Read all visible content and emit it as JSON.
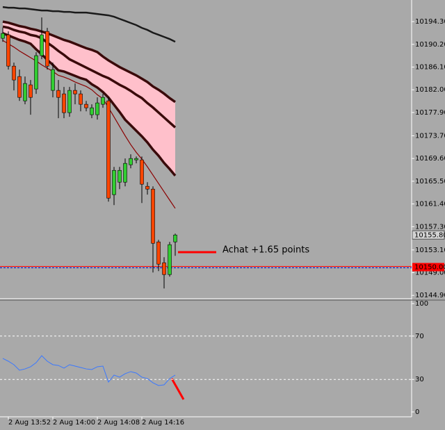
{
  "chart_data": [
    {
      "type": "candlestick",
      "categories": [
        null,
        "2 Aug 13:52",
        null,
        null,
        null,
        null,
        null,
        null,
        null,
        "2 Aug 14:00",
        null,
        null,
        null,
        null,
        null,
        null,
        null,
        "2 Aug 14:08",
        null,
        null,
        null,
        null,
        null,
        null,
        null,
        "2 Aug 14:16",
        null,
        null,
        null,
        null,
        null,
        null
      ],
      "open": [
        10191.29,
        10191.92,
        10186.27,
        10184.39,
        10180.0,
        10182.89,
        10182.14,
        10188.16,
        10192.54,
        10181.89,
        10181.89,
        10181.26,
        10177.87,
        10181.89,
        10181.26,
        10179.38,
        10177.5,
        10177.5,
        10179.38,
        10180.0,
        10163.08,
        10165.33,
        10165.33,
        10168.47,
        10169.35,
        10169.35,
        10164.58,
        10164.08,
        10154.55,
        10150.79,
        10148.66,
        10154.55
      ],
      "high": [
        10193.17,
        10192.54,
        10186.9,
        10185.65,
        10184.39,
        10183.77,
        10188.78,
        10195.05,
        10193.17,
        10186.9,
        10183.77,
        10182.51,
        10182.51,
        10183.14,
        10181.89,
        10180.0,
        10179.38,
        10180.63,
        10181.26,
        10180.63,
        10168.09,
        10168.09,
        10169.6,
        10170.35,
        10169.97,
        10169.97,
        10165.33,
        10164.58,
        10154.92,
        10151.79,
        10154.55,
        10156.05
      ],
      "low": [
        10190.66,
        10185.65,
        10181.89,
        10180.0,
        10179.38,
        10177.5,
        10181.26,
        10187.53,
        10185.65,
        10180.63,
        10176.87,
        10176.87,
        10177.12,
        10179.38,
        10178.12,
        10178.12,
        10176.87,
        10176.62,
        10178.75,
        10161.82,
        10161.19,
        10164.08,
        10164.58,
        10167.84,
        10168.72,
        10161.57,
        10163.08,
        10149.03,
        10149.28,
        10146.15,
        10148.28,
        10152.04
      ],
      "close": [
        10192.17,
        10186.27,
        10183.77,
        10180.63,
        10183.14,
        10180.63,
        10188.16,
        10191.92,
        10186.27,
        10185.65,
        10180.63,
        10177.87,
        10181.89,
        10181.26,
        10179.38,
        10178.75,
        10178.75,
        10179.63,
        10180.63,
        10162.45,
        10167.46,
        10167.46,
        10168.72,
        10169.6,
        10169.6,
        10164.96,
        10164.08,
        10154.3,
        10150.54,
        10148.66,
        10154.05,
        10155.8
      ],
      "up_color": "#32cd32",
      "down_color": "#ff4500",
      "series": [
        {
          "color": "#1a1a1a",
          "width": 2.5,
          "values": [
            10196.93,
            10196.81,
            10196.81,
            10196.68,
            10196.68,
            10196.56,
            10196.43,
            10196.31,
            10196.31,
            10196.18,
            10196.18,
            10196.06,
            10196.06,
            10195.93,
            10195.93,
            10195.93,
            10195.8,
            10195.68,
            10195.55,
            10195.43,
            10195.18,
            10194.8,
            10194.43,
            10194.05,
            10193.67,
            10193.17,
            10192.8,
            10192.29,
            10191.92,
            10191.54,
            10191.16,
            10190.66
          ]
        },
        {
          "color": "#3a0a0a",
          "width": 3.5,
          "values": [
            10194.3,
            10194.1,
            10193.8,
            10193.5,
            10193.3,
            10193.0,
            10192.8,
            10192.5,
            10192.2,
            10191.8,
            10191.4,
            10191.0,
            10190.7,
            10190.3,
            10189.9,
            10189.5,
            10189.2,
            10188.8,
            10188.0,
            10187.3,
            10186.7,
            10186.1,
            10185.6,
            10185.1,
            10184.6,
            10184.0,
            10183.4,
            10182.6,
            10182.0,
            10181.3,
            10180.5,
            10179.8
          ]
        },
        {
          "color": "#3a0a0a",
          "width": 3.5,
          "values": [
            10193.4,
            10193.2,
            10192.8,
            10192.5,
            10192.3,
            10191.9,
            10191.7,
            10191.3,
            10190.5,
            10189.8,
            10189.0,
            10188.3,
            10187.5,
            10187.0,
            10186.5,
            10186.0,
            10185.5,
            10185.0,
            10184.5,
            10184.1,
            10183.5,
            10182.9,
            10182.4,
            10181.8,
            10181.1,
            10180.5,
            10179.6,
            10178.8,
            10177.9,
            10177.0,
            10176.1,
            10175.2
          ]
        },
        {
          "color": "#3a0a0a",
          "width": 3.5,
          "values": [
            10192.2,
            10191.8,
            10191.4,
            10191.0,
            10190.7,
            10190.3,
            10189.3,
            10188.4,
            10187.4,
            10186.5,
            10185.5,
            10185.3,
            10184.9,
            10184.5,
            10184.1,
            10183.8,
            10183.0,
            10182.4,
            10181.6,
            10180.6,
            10179.3,
            10178.0,
            10176.6,
            10175.6,
            10174.6,
            10173.6,
            10172.5,
            10171.2,
            10170.1,
            10168.8,
            10167.7,
            10166.5
          ]
        },
        {
          "color": "#8b0000",
          "width": 1.2,
          "values": [
            10190.9,
            10190.3,
            10189.7,
            10189.0,
            10188.4,
            10187.8,
            10187.2,
            10186.5,
            10185.9,
            10185.3,
            10184.6,
            10184.3,
            10183.9,
            10183.4,
            10183.0,
            10182.6,
            10182.0,
            10181.1,
            10180.4,
            10178.8,
            10177.1,
            10175.4,
            10173.7,
            10172.1,
            10170.7,
            10169.5,
            10168.1,
            10166.6,
            10165.1,
            10163.6,
            10162.1,
            10160.6
          ]
        }
      ],
      "band_color": "#ffc0cb",
      "ylim": [
        10144.3,
        10198.2
      ],
      "yticks": [
        {
          "value": 10194.3,
          "label": "10194.30"
        },
        {
          "value": 10190.2,
          "label": "10190.20"
        },
        {
          "value": 10186.1,
          "label": "10186.10"
        },
        {
          "value": 10182.0,
          "label": "10182.00"
        },
        {
          "value": 10177.9,
          "label": "10177.90"
        },
        {
          "value": 10173.7,
          "label": "10173.70"
        },
        {
          "value": 10169.6,
          "label": "10169.60"
        },
        {
          "value": 10165.5,
          "label": "10165.50"
        },
        {
          "value": 10161.4,
          "label": "10161.40"
        },
        {
          "value": 10157.3,
          "label": "10157.30"
        },
        {
          "value": 10153.1,
          "label": "10153.10"
        },
        {
          "value": 10149.0,
          "label": "10149.00"
        },
        {
          "value": 10144.9,
          "label": "10144.90"
        }
      ],
      "current_price": {
        "value": 10155.8,
        "label": "10155.80"
      },
      "level": {
        "value": 10150.0,
        "label": "10150.00"
      },
      "annotation": "Achat +1.65 points",
      "annotation_color": "#ff0000"
    },
    {
      "type": "line",
      "series": [
        {
          "color": "#3a78ff",
          "values": [
            49.4,
            46.8,
            43.6,
            38.5,
            39.7,
            41.7,
            45.5,
            51.9,
            46.8,
            43.6,
            42.9,
            40.4,
            43.6,
            42.3,
            41.0,
            39.7,
            39.1,
            41.7,
            42.3,
            27.6,
            34.0,
            32.1,
            35.3,
            37.2,
            35.9,
            32.1,
            30.8,
            26.9,
            24.4,
            25.0,
            30.8,
            34.0
          ]
        }
      ],
      "ylim": [
        0,
        100
      ],
      "yticks": [
        100,
        70,
        30,
        0
      ],
      "dashed_levels": [
        70,
        30
      ]
    }
  ]
}
